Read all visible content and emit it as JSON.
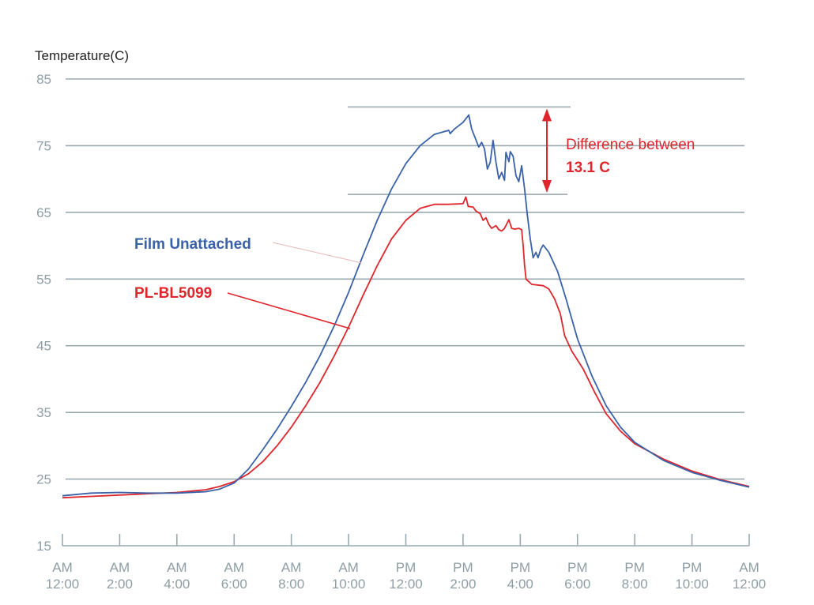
{
  "chart_data": {
    "type": "line",
    "ylabel": "Temperature(C)",
    "xlabel": "",
    "ylim": [
      15,
      85
    ],
    "yticks": [
      85,
      75,
      65,
      55,
      45,
      35,
      25,
      15
    ],
    "x_hours_range": [
      0,
      24
    ],
    "categories": [
      {
        "ampm": "AM",
        "time": "12:00",
        "hour": 0
      },
      {
        "ampm": "AM",
        "time": "2:00",
        "hour": 2
      },
      {
        "ampm": "AM",
        "time": "4:00",
        "hour": 4
      },
      {
        "ampm": "AM",
        "time": "6:00",
        "hour": 6
      },
      {
        "ampm": "AM",
        "time": "8:00",
        "hour": 8
      },
      {
        "ampm": "AM",
        "time": "10:00",
        "hour": 10
      },
      {
        "ampm": "PM",
        "time": "12:00",
        "hour": 12
      },
      {
        "ampm": "PM",
        "time": "2:00",
        "hour": 14
      },
      {
        "ampm": "PM",
        "time": "4:00",
        "hour": 16
      },
      {
        "ampm": "PM",
        "time": "6:00",
        "hour": 18
      },
      {
        "ampm": "PM",
        "time": "8:00",
        "hour": 20
      },
      {
        "ampm": "PM",
        "time": "10:00",
        "hour": 22
      },
      {
        "ampm": "AM",
        "time": "12:00",
        "hour": 24
      }
    ],
    "grid": true,
    "series": [
      {
        "name": "Film Unattached",
        "color": "#3a62a8",
        "points": [
          [
            0,
            22.5
          ],
          [
            1,
            22.9
          ],
          [
            2,
            23.0
          ],
          [
            3,
            22.9
          ],
          [
            4,
            22.9
          ],
          [
            5,
            23.1
          ],
          [
            5.5,
            23.5
          ],
          [
            6,
            24.4
          ],
          [
            6.5,
            26.5
          ],
          [
            7,
            29.4
          ],
          [
            7.5,
            32.5
          ],
          [
            8,
            35.9
          ],
          [
            8.5,
            39.5
          ],
          [
            9,
            43.5
          ],
          [
            9.5,
            48.0
          ],
          [
            10,
            53.0
          ],
          [
            10.5,
            58.5
          ],
          [
            11,
            63.8
          ],
          [
            11.5,
            68.5
          ],
          [
            12,
            72.3
          ],
          [
            12.5,
            75.0
          ],
          [
            13,
            76.7
          ],
          [
            13.5,
            77.3
          ],
          [
            13.55,
            76.8
          ],
          [
            13.7,
            77.5
          ],
          [
            14,
            78.5
          ],
          [
            14.2,
            79.6
          ],
          [
            14.3,
            77.5
          ],
          [
            14.55,
            74.8
          ],
          [
            14.65,
            75.5
          ],
          [
            14.75,
            74.5
          ],
          [
            14.85,
            71.5
          ],
          [
            14.95,
            72.5
          ],
          [
            15.05,
            75.8
          ],
          [
            15.15,
            72.5
          ],
          [
            15.25,
            70.0
          ],
          [
            15.35,
            71.0
          ],
          [
            15.45,
            69.8
          ],
          [
            15.5,
            74.0
          ],
          [
            15.6,
            72.6
          ],
          [
            15.65,
            74.1
          ],
          [
            15.75,
            73.4
          ],
          [
            15.85,
            70.5
          ],
          [
            15.95,
            69.6
          ],
          [
            16.05,
            72.0
          ],
          [
            16.15,
            68.5
          ],
          [
            16.25,
            64.5
          ],
          [
            16.35,
            61.0
          ],
          [
            16.45,
            58.2
          ],
          [
            16.55,
            59.0
          ],
          [
            16.62,
            58.2
          ],
          [
            16.72,
            59.5
          ],
          [
            16.8,
            60.1
          ],
          [
            17,
            59.0
          ],
          [
            17.3,
            56.2
          ],
          [
            17.6,
            52.0
          ],
          [
            18,
            46.0
          ],
          [
            18.5,
            40.5
          ],
          [
            19,
            36.0
          ],
          [
            19.5,
            32.8
          ],
          [
            20,
            30.5
          ],
          [
            21,
            27.8
          ],
          [
            22,
            26.0
          ],
          [
            23,
            24.8
          ],
          [
            24,
            23.8
          ]
        ]
      },
      {
        "name": "PL-BL5099",
        "color": "#e0262d",
        "points": [
          [
            0,
            22.2
          ],
          [
            1,
            22.4
          ],
          [
            2,
            22.6
          ],
          [
            3,
            22.8
          ],
          [
            4,
            23.0
          ],
          [
            5,
            23.4
          ],
          [
            5.5,
            23.9
          ],
          [
            6,
            24.6
          ],
          [
            6.5,
            25.8
          ],
          [
            7,
            27.6
          ],
          [
            7.5,
            30.0
          ],
          [
            8,
            32.8
          ],
          [
            8.5,
            36.0
          ],
          [
            9,
            39.5
          ],
          [
            9.5,
            43.5
          ],
          [
            10,
            47.8
          ],
          [
            10.5,
            52.5
          ],
          [
            11,
            57.0
          ],
          [
            11.5,
            61.0
          ],
          [
            12,
            63.8
          ],
          [
            12.5,
            65.6
          ],
          [
            13,
            66.2
          ],
          [
            13.5,
            66.2
          ],
          [
            14,
            66.3
          ],
          [
            14.1,
            67.3
          ],
          [
            14.18,
            65.9
          ],
          [
            14.35,
            65.8
          ],
          [
            14.45,
            65.2
          ],
          [
            14.6,
            64.8
          ],
          [
            14.7,
            63.8
          ],
          [
            14.8,
            64.2
          ],
          [
            14.9,
            63.2
          ],
          [
            15.0,
            62.6
          ],
          [
            15.15,
            63.0
          ],
          [
            15.25,
            62.4
          ],
          [
            15.35,
            62.2
          ],
          [
            15.45,
            62.6
          ],
          [
            15.6,
            63.9
          ],
          [
            15.7,
            62.6
          ],
          [
            15.8,
            62.5
          ],
          [
            15.95,
            62.6
          ],
          [
            16.05,
            62.4
          ],
          [
            16.1,
            60.0
          ],
          [
            16.15,
            57.0
          ],
          [
            16.2,
            55.0
          ],
          [
            16.4,
            54.2
          ],
          [
            16.8,
            54.0
          ],
          [
            17.0,
            53.5
          ],
          [
            17.2,
            52.0
          ],
          [
            17.4,
            49.8
          ],
          [
            17.55,
            46.5
          ],
          [
            17.8,
            44.2
          ],
          [
            18.2,
            41.5
          ],
          [
            18.6,
            38.0
          ],
          [
            19,
            34.8
          ],
          [
            19.5,
            32.2
          ],
          [
            20,
            30.3
          ],
          [
            21,
            28.0
          ],
          [
            22,
            26.2
          ],
          [
            23,
            24.9
          ],
          [
            24,
            23.9
          ]
        ]
      }
    ],
    "legend_placement": "left, beside curves",
    "annotation": {
      "line1": "Difference between",
      "line2": "13.1 C",
      "upper_value": 80.8,
      "lower_value": 67.7,
      "color": "#e0262d"
    }
  }
}
